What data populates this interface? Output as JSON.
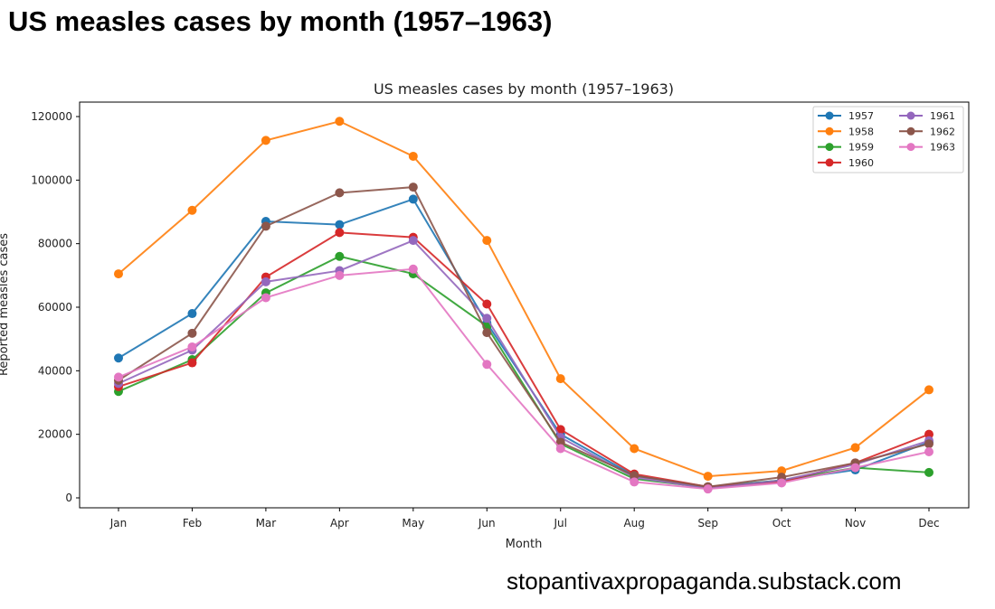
{
  "headline": "US measles cases by month (1957–1963)",
  "credit": "stopantivaxpropaganda.substack.com",
  "chart_data": {
    "type": "line",
    "title": "US measles cases by month (1957–1963)",
    "xlabel": "Month",
    "ylabel": "Reported measles cases",
    "categories": [
      "Jan",
      "Feb",
      "Mar",
      "Apr",
      "May",
      "Jun",
      "Jul",
      "Aug",
      "Sep",
      "Oct",
      "Nov",
      "Dec"
    ],
    "ylim": [
      0,
      120000
    ],
    "yticks": [
      0,
      20000,
      40000,
      60000,
      80000,
      100000,
      120000
    ],
    "legend": "top-right",
    "grid": false,
    "series": [
      {
        "name": "1957",
        "color": "#1f77b4",
        "values": [
          44000,
          58000,
          87000,
          86000,
          94000,
          55000,
          20000,
          7000,
          3500,
          5500,
          8800,
          17500
        ]
      },
      {
        "name": "1958",
        "color": "#ff7f0e",
        "values": [
          70500,
          90500,
          112500,
          118500,
          107500,
          81000,
          37500,
          15500,
          6800,
          8500,
          15800,
          34000
        ]
      },
      {
        "name": "1959",
        "color": "#2ca02c",
        "values": [
          33500,
          43500,
          64500,
          76000,
          70500,
          54000,
          17000,
          6000,
          3200,
          5500,
          9500,
          8000
        ]
      },
      {
        "name": "1960",
        "color": "#d62728",
        "values": [
          35000,
          42500,
          69500,
          83500,
          82000,
          61000,
          21500,
          7500,
          3500,
          5000,
          11000,
          20000
        ]
      },
      {
        "name": "1961",
        "color": "#9467bd",
        "values": [
          36000,
          46500,
          68000,
          71500,
          81000,
          56500,
          19000,
          6500,
          3000,
          5500,
          10500,
          18000
        ]
      },
      {
        "name": "1962",
        "color": "#8c564b",
        "values": [
          37000,
          51800,
          85500,
          96000,
          97800,
          52000,
          17500,
          7000,
          3500,
          6500,
          11000,
          17000
        ]
      },
      {
        "name": "1963",
        "color": "#e377c2",
        "values": [
          38000,
          47500,
          63000,
          70000,
          72000,
          42000,
          15500,
          5000,
          2800,
          4700,
          9500,
          14500
        ]
      }
    ]
  }
}
